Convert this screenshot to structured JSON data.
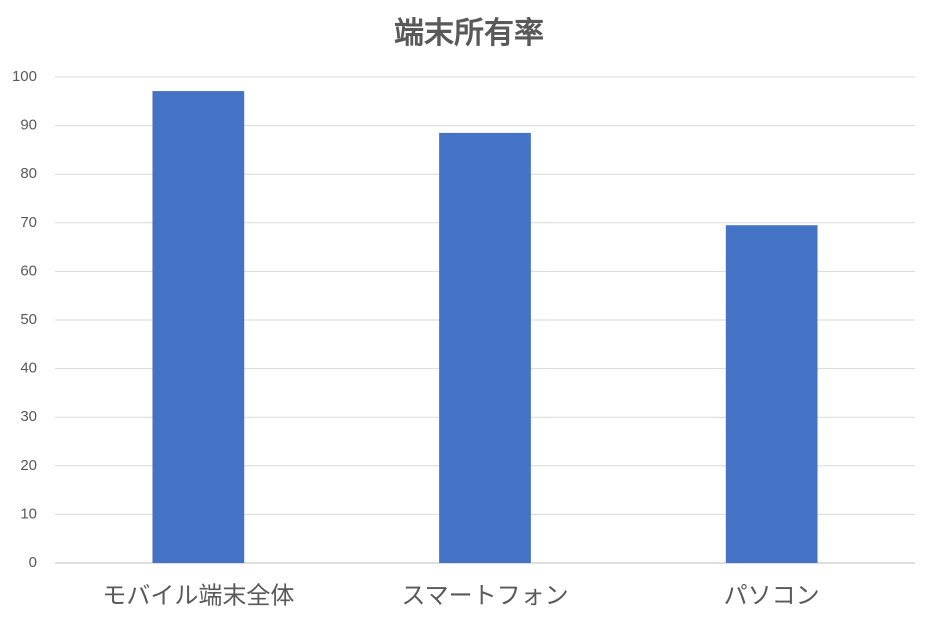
{
  "chart_data": {
    "type": "bar",
    "title": "端末所有率",
    "categories": [
      "モバイル端末全体",
      "スマートフォン",
      "パソコン"
    ],
    "values": [
      97.1,
      88.5,
      69.5
    ],
    "color": "#4472c4",
    "ylim": [
      0,
      100
    ],
    "yticks": [
      0,
      10,
      20,
      30,
      40,
      50,
      60,
      70,
      80,
      90,
      100
    ],
    "grid": true
  }
}
